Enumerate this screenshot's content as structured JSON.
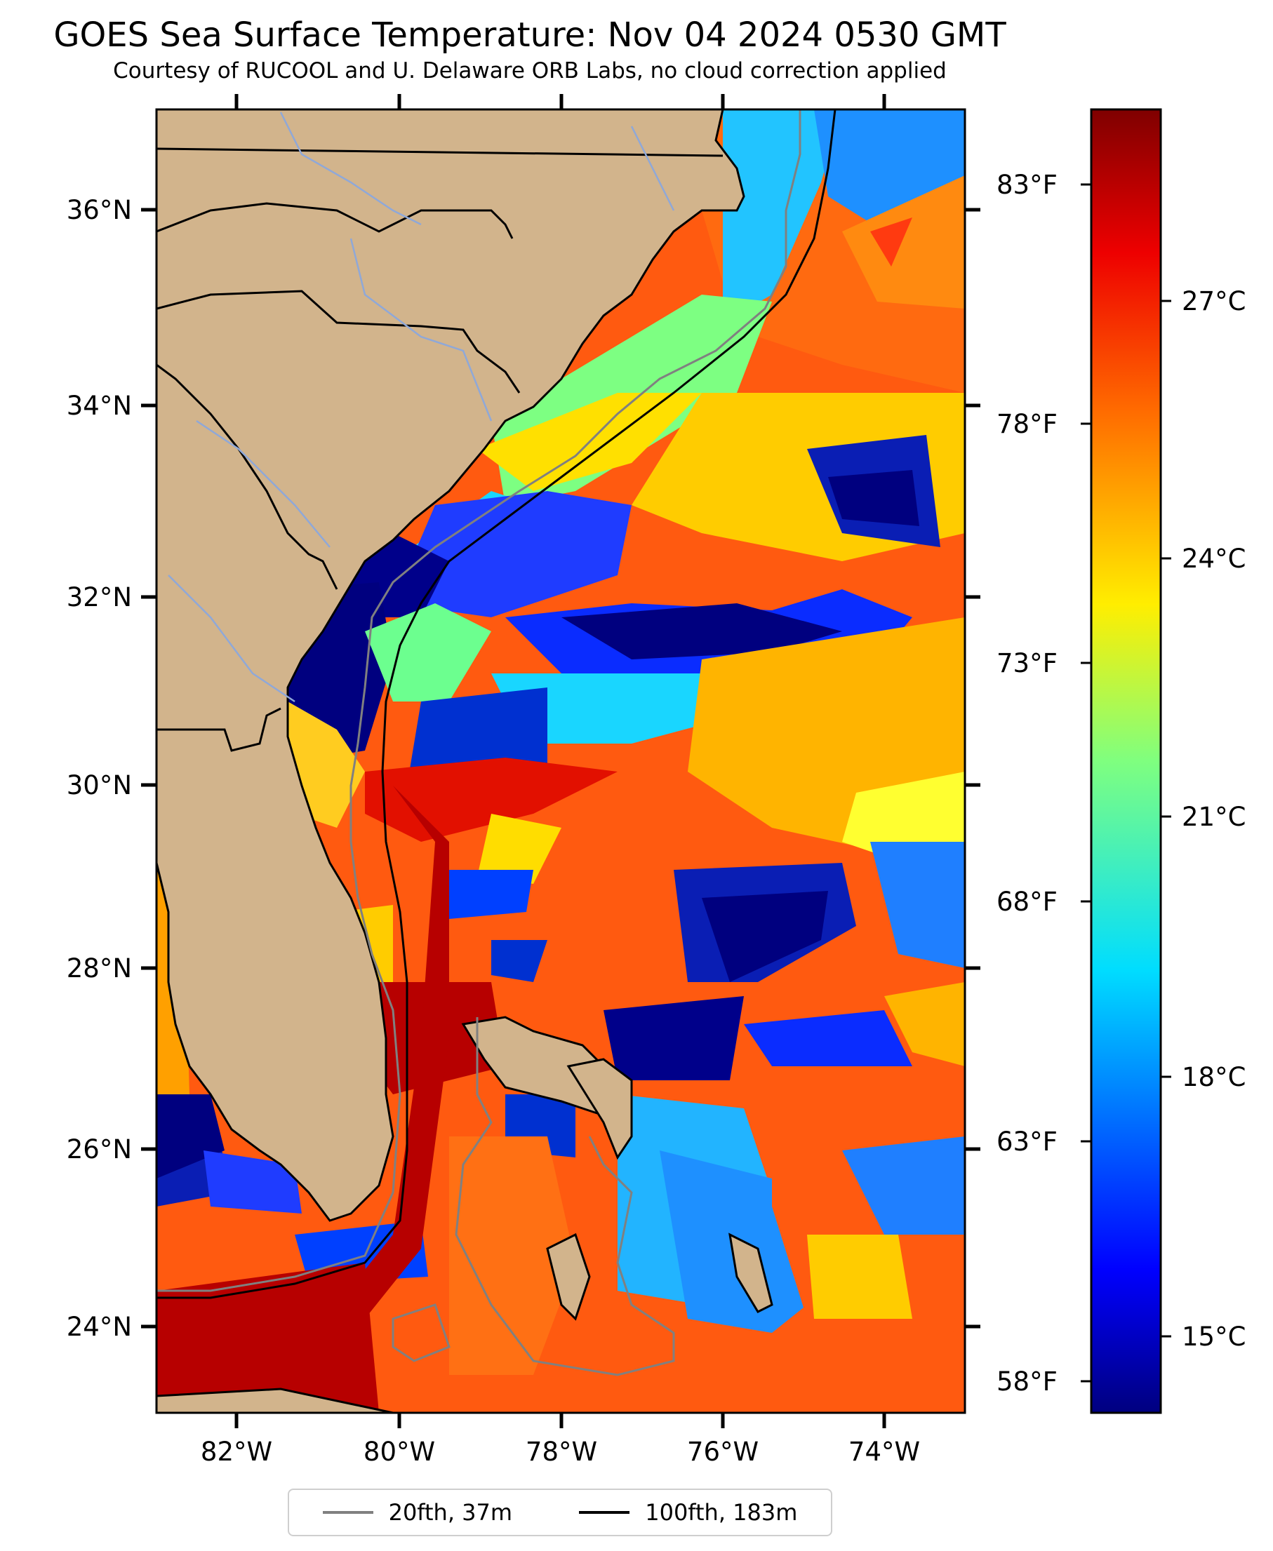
{
  "title": "GOES Sea Surface Temperature: Nov 04 2024 0530 GMT",
  "subtitle": "Courtesy of RUCOOL and U. Delaware ORB Labs, no cloud correction applied",
  "map": {
    "lat_labels": [
      "36°N",
      "34°N",
      "32°N",
      "30°N",
      "28°N",
      "26°N",
      "24°N"
    ],
    "lon_labels": [
      "82°W",
      "80°W",
      "78°W",
      "76°W",
      "74°W"
    ],
    "fahrenheit_labels": [
      "83°F",
      "78°F",
      "73°F",
      "68°F",
      "63°F",
      "58°F"
    ],
    "land_color": "#d2b48c",
    "region": "US Southeast coast to the Bahamas, open ocean to 73°W"
  },
  "colorbar": {
    "labels": [
      "27°C",
      "24°C",
      "21°C",
      "18°C",
      "15°C"
    ],
    "colormap": "jet"
  },
  "legend": [
    {
      "label": "20fth, 37m",
      "color": "#808080"
    },
    {
      "label": "100fth, 183m",
      "color": "#000000"
    }
  ]
}
